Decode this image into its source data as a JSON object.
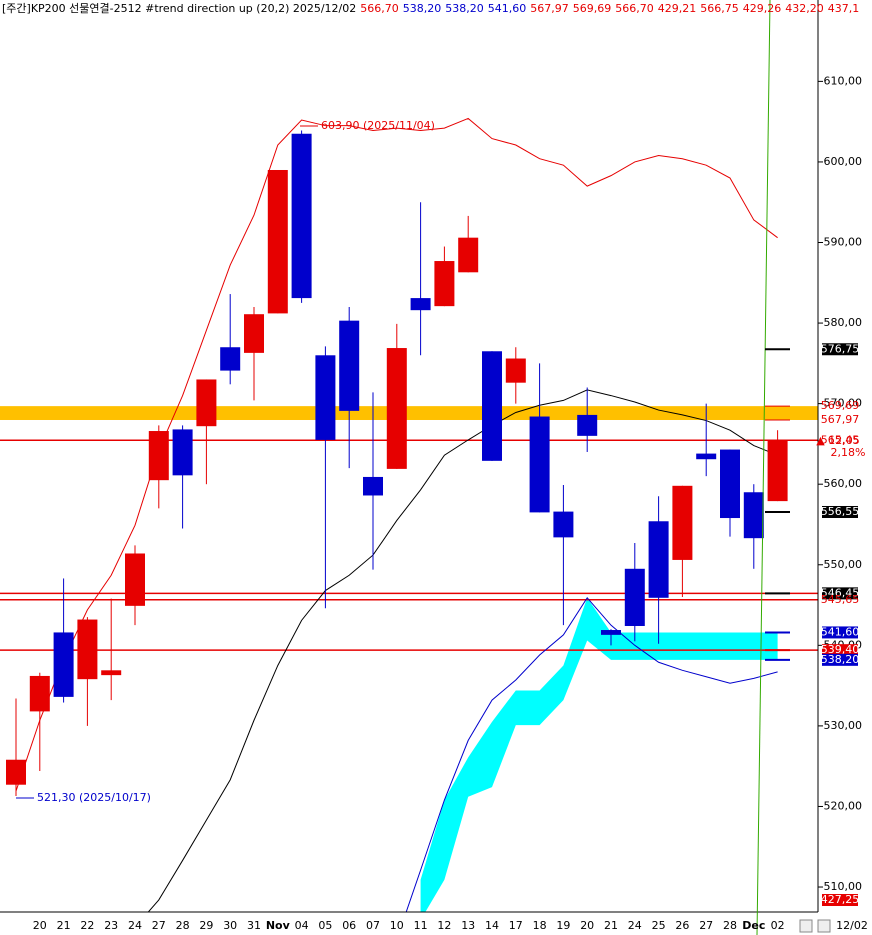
{
  "chart_data": {
    "type": "candlestick",
    "header": {
      "title": "[주간]KP200 선물연결-2512 #trend direction up  (20,2) 2025/12/02",
      "values": [
        {
          "text": "566,70",
          "color": "#e60000"
        },
        {
          "text": "538,20",
          "color": "#0000cc"
        },
        {
          "text": "538,20",
          "color": "#0000cc"
        },
        {
          "text": "541,60",
          "color": "#0000cc"
        },
        {
          "text": "567,97",
          "color": "#e60000"
        },
        {
          "text": "569,69",
          "color": "#e60000"
        },
        {
          "text": "566,70",
          "color": "#e60000"
        },
        {
          "text": "429,21",
          "color": "#e60000"
        },
        {
          "text": "566,75",
          "color": "#e60000"
        },
        {
          "text": "429,26",
          "color": "#e60000"
        },
        {
          "text": "432,20",
          "color": "#e60000"
        },
        {
          "text": "437,1",
          "color": "#e60000"
        }
      ]
    },
    "categories": [
      null,
      "20",
      "21",
      "22",
      "23",
      "24",
      "27",
      "28",
      "29",
      "30",
      "31",
      "Nov",
      "04",
      "05",
      "06",
      "07",
      "10",
      "11",
      "12",
      "13",
      "14",
      "17",
      "18",
      "19",
      "20",
      "21",
      "24",
      "25",
      "26",
      "27",
      "28",
      "Dec",
      "02"
    ],
    "open": [
      522.7,
      531.8,
      541.6,
      535.8,
      536.3,
      544.9,
      560.5,
      566.8,
      567.2,
      577.0,
      576.3,
      581.2,
      603.5,
      576.0,
      580.3,
      560.9,
      561.9,
      583.1,
      582.1,
      586.3,
      576.5,
      572.6,
      568.4,
      556.6,
      568.6,
      541.9,
      549.5,
      555.4,
      550.6,
      563.8,
      564.3,
      559.0,
      557.9
    ],
    "high": [
      533.4,
      536.6,
      548.3,
      543.5,
      545.8,
      552.4,
      567.3,
      567.3,
      573.0,
      583.6,
      582.0,
      599.0,
      603.9,
      577.1,
      582.0,
      571.4,
      579.9,
      595.0,
      589.5,
      593.3,
      576.5,
      577.0,
      575.0,
      559.9,
      572.0,
      542.0,
      552.7,
      558.5,
      559.8,
      570.0,
      564.3,
      560.0,
      566.7
    ],
    "low": [
      521.3,
      524.4,
      532.9,
      530.0,
      533.2,
      542.5,
      557.0,
      554.5,
      560.0,
      572.4,
      570.4,
      581.2,
      582.5,
      544.6,
      562.0,
      549.4,
      561.9,
      576.0,
      582.1,
      586.3,
      562.9,
      570.0,
      556.5,
      542.5,
      564.0,
      540.0,
      540.5,
      540.2,
      546.0,
      561.0,
      553.5,
      549.5,
      557.9
    ],
    "close": [
      525.8,
      536.2,
      533.6,
      543.2,
      536.9,
      551.4,
      566.6,
      561.1,
      573.0,
      574.1,
      581.1,
      599.0,
      583.1,
      565.5,
      569.1,
      558.6,
      576.9,
      581.6,
      587.7,
      590.6,
      562.9,
      575.6,
      556.5,
      553.4,
      566.0,
      541.3,
      542.4,
      545.9,
      559.8,
      563.1,
      555.8,
      553.3,
      565.4
    ],
    "up_color": "#e60000",
    "down_color": "#0000cc",
    "lines": [
      {
        "color": "#e60000",
        "values": [
          521.9,
          530.7,
          538.2,
          544.4,
          548.7,
          554.9,
          564.2,
          571.0,
          579.1,
          587.2,
          593.4,
          602.1,
          605.2,
          604.5,
          604.5,
          603.9,
          604.2,
          603.9,
          604.2,
          605.4,
          602.9,
          602.1,
          600.4,
          599.6,
          597.0,
          598.3,
          600.0,
          600.8,
          600.4,
          599.6,
          598.0,
          592.8,
          590.6
        ]
      },
      {
        "color": "#000000",
        "values": [
          null,
          null,
          null,
          null,
          null,
          505.0,
          508.4,
          513.3,
          518.3,
          523.3,
          530.7,
          537.5,
          543.1,
          546.8,
          548.7,
          551.2,
          555.5,
          559.3,
          563.6,
          565.5,
          567.3,
          568.9,
          569.8,
          570.4,
          571.7,
          571.0,
          570.2,
          569.2,
          568.6,
          567.9,
          566.7,
          564.8,
          563.6
        ]
      },
      {
        "color": "#0000cc",
        "values": [
          null,
          null,
          null,
          null,
          null,
          null,
          null,
          null,
          null,
          null,
          null,
          null,
          null,
          null,
          null,
          null,
          503.5,
          512.1,
          520.8,
          528.2,
          533.2,
          535.7,
          538.8,
          541.3,
          545.9,
          542.5,
          540.0,
          537.9,
          536.9,
          536.1,
          535.3,
          535.9,
          536.7
        ]
      }
    ],
    "band": {
      "color": "#00ffff",
      "upper": [
        null,
        null,
        null,
        null,
        null,
        null,
        null,
        null,
        null,
        null,
        null,
        null,
        null,
        null,
        null,
        null,
        null,
        510.9,
        520.8,
        526.1,
        530.5,
        534.4,
        534.4,
        537.5,
        545.9,
        541.6,
        541.6,
        541.6,
        541.6,
        541.6,
        541.6,
        541.6,
        541.6
      ],
      "lower": [
        null,
        null,
        null,
        null,
        null,
        null,
        null,
        null,
        null,
        null,
        null,
        null,
        null,
        null,
        null,
        null,
        null,
        505.9,
        510.9,
        521.2,
        522.4,
        530.1,
        530.1,
        533.2,
        540.6,
        538.2,
        538.2,
        538.2,
        538.2,
        538.2,
        538.2,
        538.2,
        538.2
      ]
    },
    "zone": {
      "from": 567.97,
      "to": 569.69,
      "color": "#ffc000"
    },
    "hlines": [
      {
        "value": 565.45,
        "color": "#e60000"
      },
      {
        "value": 546.45,
        "color": "#e60000"
      },
      {
        "value": 545.65,
        "color": "#e60000"
      },
      {
        "value": 539.4,
        "color": "#e60000"
      }
    ],
    "ylim": [
      506.9,
      620.1
    ],
    "yticks": [
      {
        "value": 610,
        "label": "610,00"
      },
      {
        "value": 600,
        "label": "600,00"
      },
      {
        "value": 590,
        "label": "590,00"
      },
      {
        "value": 580,
        "label": "580,00"
      },
      {
        "value": 570,
        "label": "570,00"
      },
      {
        "value": 560,
        "label": "560,00"
      },
      {
        "value": 550,
        "label": "550,00"
      },
      {
        "value": 540,
        "label": "540,00"
      },
      {
        "value": 530,
        "label": "530,00"
      },
      {
        "value": 520,
        "label": "520,00"
      },
      {
        "value": 510,
        "label": "510,00"
      }
    ],
    "price_labels": [
      {
        "value": 576.75,
        "label": "576,75",
        "color": "#000000",
        "boxed": true
      },
      {
        "value": 569.69,
        "label": "569,69",
        "color": "#e60000",
        "boxed": false
      },
      {
        "value": 567.97,
        "label": "567,97",
        "color": "#e60000",
        "boxed": false
      },
      {
        "value": 565.45,
        "label": "565,45",
        "color": "#e60000",
        "boxed": false
      },
      {
        "value": 556.55,
        "label": "556,55",
        "color": "#000000",
        "boxed": true
      },
      {
        "value": 546.45,
        "label": "546,45",
        "color": "#000000",
        "boxed": true
      },
      {
        "value": 545.65,
        "label": "545,65",
        "color": "#e60000",
        "boxed": false
      },
      {
        "value": 541.6,
        "label": "541,60",
        "color": "#0000cc",
        "boxed": true
      },
      {
        "value": 539.4,
        "label": "539,40",
        "color": "#e60000",
        "boxed": true
      },
      {
        "value": 538.2,
        "label": "538,20",
        "color": "#0000cc",
        "boxed": true
      }
    ],
    "change": "▲ 12,05",
    "change_pct": "2,18%",
    "bottom_label": "427,25",
    "date_label": "12/02",
    "high_note": "603,90 (2025/11/04)",
    "low_note": "521,30 (2025/10/17)"
  }
}
